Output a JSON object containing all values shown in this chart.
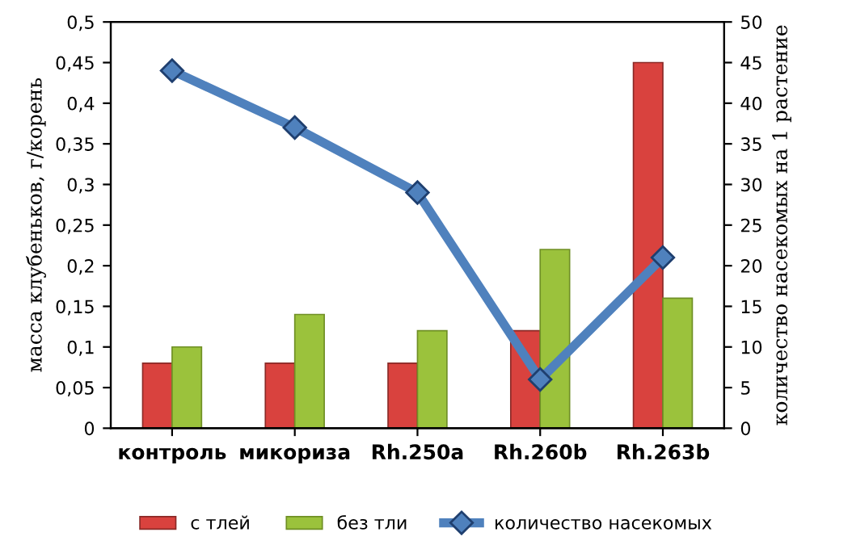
{
  "chart_data": {
    "type": "bar",
    "categories": [
      "контроль",
      "микориза",
      "Rh.250a",
      "Rh.260b",
      "Rh.263b"
    ],
    "ylabel": "масса клубеньков, г/корень",
    "y2label": "количество насекомых на 1 растение",
    "series": [
      {
        "name": "с тлей",
        "color": "#d9423e",
        "values": [
          0.08,
          0.08,
          0.08,
          0.12,
          0.45
        ]
      },
      {
        "name": "без тли",
        "color": "#9bc23c",
        "values": [
          0.1,
          0.14,
          0.12,
          0.22,
          0.16
        ]
      },
      {
        "name": "количество насекомых",
        "color": "#4f81bd",
        "type": "line",
        "axis": "y2",
        "marker": "diamond",
        "values": [
          44,
          37,
          29,
          6,
          21
        ]
      }
    ],
    "ylim": [
      0,
      0.5
    ],
    "yticks": [
      0,
      {
        "value": 0.05,
        "label": "0,05"
      },
      {
        "value": 0.1,
        "label": "0,1"
      },
      {
        "value": 0.15,
        "label": "0,15"
      },
      {
        "value": 0.2,
        "label": "0,2"
      },
      {
        "value": 0.25,
        "label": "0,25"
      },
      {
        "value": 0.3,
        "label": "0,3"
      },
      {
        "value": 0.35,
        "label": "0,35"
      },
      {
        "value": 0.4,
        "label": "0,4"
      },
      {
        "value": 0.45,
        "label": "0,45"
      },
      {
        "value": 0.5,
        "label": "0,5"
      }
    ],
    "y2lim": [
      0,
      50
    ],
    "y2ticks": [
      0,
      5,
      10,
      15,
      20,
      25,
      30,
      35,
      40,
      45,
      50
    ],
    "grid": false,
    "legend": "bottom"
  }
}
